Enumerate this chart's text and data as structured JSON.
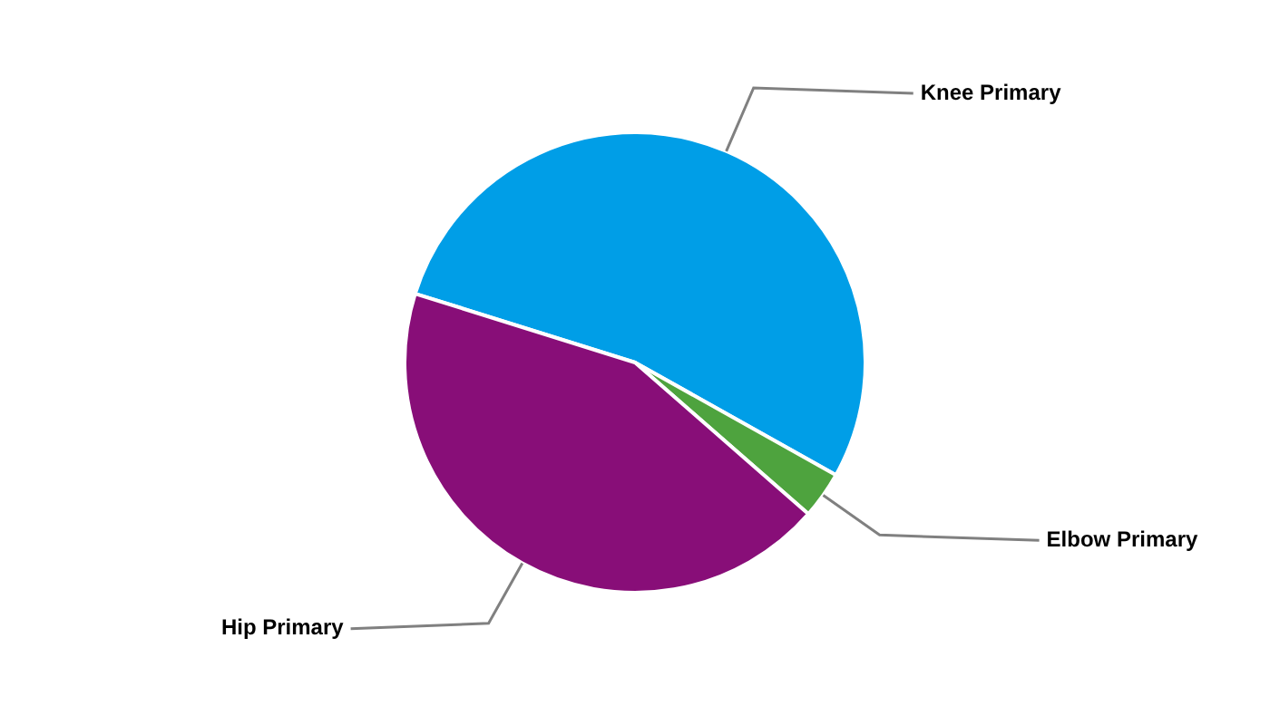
{
  "chart_data": {
    "type": "pie",
    "categories": [
      "Knee Primary",
      "Elbow Primary",
      "Hip Primary"
    ],
    "values": [
      53.3,
      3.3,
      43.4
    ],
    "colors": [
      "#009ee7",
      "#4ea33e",
      "#880e78"
    ],
    "legend": false
  }
}
